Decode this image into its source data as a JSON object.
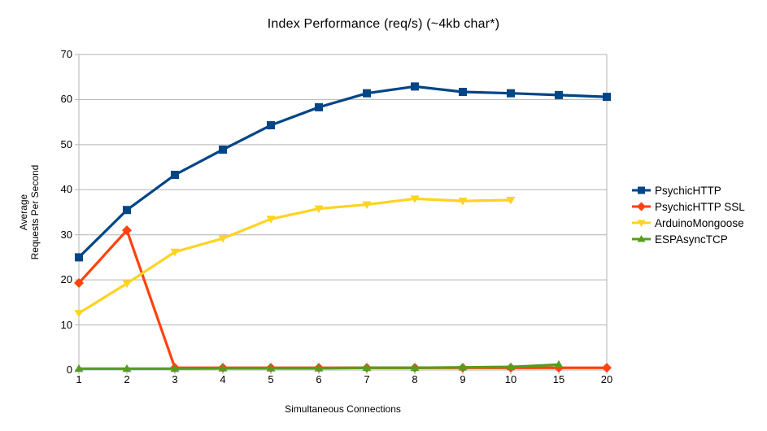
{
  "title": "Index Performance (req/s) (~4kb char*)",
  "colors": {
    "grid": "#b3b3b3",
    "text": "#000000",
    "background": "#ffffff",
    "series_blue": "#004586",
    "series_red": "#FF420E",
    "series_yellow": "#FFD320",
    "series_green": "#579D1C"
  },
  "chart_data": {
    "type": "line",
    "title": "Index Performance (req/s) (~4kb char*)",
    "xlabel": "Simultaneous Connections",
    "ylabel": "Average Requests Per Second",
    "ylabel_lines": [
      "Average",
      "Requests Per Second"
    ],
    "categories": [
      "1",
      "2",
      "3",
      "4",
      "5",
      "6",
      "7",
      "8",
      "9",
      "10",
      "15",
      "20"
    ],
    "ylim": [
      0,
      70
    ],
    "yticks": [
      0,
      10,
      20,
      30,
      40,
      50,
      60,
      70
    ],
    "grid": true,
    "legend_position": "right",
    "series": [
      {
        "name": "PsychicHTTP",
        "color": "#004586",
        "marker": "square",
        "values": [
          25.0,
          35.5,
          43.3,
          48.9,
          54.3,
          58.3,
          61.4,
          62.9,
          61.7,
          61.4,
          61.0,
          60.6
        ]
      },
      {
        "name": "PsychicHTTP SSL",
        "color": "#FF420E",
        "marker": "diamond",
        "values": [
          19.3,
          31.0,
          0.5,
          0.5,
          0.5,
          0.5,
          0.5,
          0.5,
          0.5,
          0.5,
          0.5,
          0.5
        ]
      },
      {
        "name": "ArduinoMongoose",
        "color": "#FFD320",
        "marker": "triangle-down",
        "values": [
          12.6,
          19.2,
          26.2,
          29.2,
          33.5,
          35.8,
          36.7,
          38.0,
          37.5,
          37.7
        ]
      },
      {
        "name": "ESPAsyncTCP",
        "color": "#579D1C",
        "marker": "triangle-up",
        "values": [
          0.3,
          0.3,
          0.3,
          0.4,
          0.4,
          0.4,
          0.5,
          0.5,
          0.6,
          0.7,
          1.2
        ]
      }
    ]
  }
}
